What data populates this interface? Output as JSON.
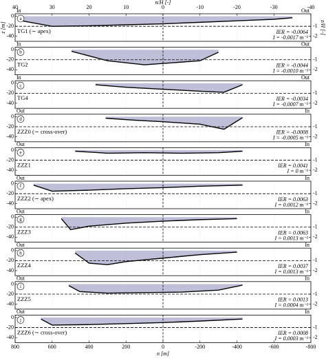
{
  "chart_data": [
    {
      "type": "line",
      "label": "a",
      "name": "TG1 (∼ apex)",
      "left": "In",
      "right": "Out",
      "ier": "IER = -0.0064",
      "i_text": "I = -0.0017 m⁻¹",
      "x2label": "n/H [-]",
      "x2lim": [
        40,
        -40
      ],
      "x2ticks": [
        40,
        30,
        20,
        10,
        0,
        -10,
        -20,
        -30,
        -40
      ],
      "ylabel": "z [m]",
      "y2label": "z/H [-]",
      "x": [
        780,
        600,
        400,
        200,
        0,
        -200,
        -400,
        -600,
        -700
      ],
      "values": [
        -8,
        -20,
        -19,
        -17,
        -15,
        -12,
        -9,
        -6,
        -3
      ],
      "color": "#000000",
      "fill": "#b4b4d2",
      "xlim": [
        800,
        -800
      ],
      "ylim": [
        -50,
        5
      ],
      "yticks": [
        0,
        -20,
        -40
      ],
      "y2lim": [
        -2.5,
        0.25
      ],
      "y2ticks": [
        -1,
        -2
      ]
    },
    {
      "type": "line",
      "label": "b",
      "name": "TG2",
      "left": "In",
      "right": "Out",
      "ier": "IER = -0.0044",
      "i_text": "I = -0.0010 m⁻¹",
      "x": [
        495,
        300,
        100,
        -200,
        -300
      ],
      "values": [
        -3,
        -22,
        -30,
        -22,
        -5
      ],
      "color": "#000000",
      "fill": "#b4b4d2",
      "xlim": [
        800,
        -800
      ],
      "ylim": [
        -50,
        5
      ],
      "yticks": [
        0,
        -20,
        -40
      ],
      "y2lim": [
        -2.5,
        0.25
      ],
      "y2ticks": [
        -1,
        -2
      ]
    },
    {
      "type": "line",
      "label": "c",
      "name": "TG4",
      "left": "In",
      "right": "Out",
      "ier": "IER = -0.0034",
      "i_text": "I = -0.0007 m⁻¹",
      "x": [
        365,
        200,
        0,
        -200,
        -330,
        -430
      ],
      "values": [
        -3,
        -8,
        -12,
        -16,
        -18,
        -3
      ],
      "color": "#000000",
      "fill": "#b4b4d2",
      "xlim": [
        800,
        -800
      ],
      "ylim": [
        -50,
        5
      ],
      "yticks": [
        0,
        -20,
        -40
      ],
      "y2lim": [
        -2.5,
        0.25
      ],
      "y2ticks": [
        -1,
        -2
      ]
    },
    {
      "type": "line",
      "label": "d",
      "name": "ZZZ0 (∼ cross-over)",
      "left": "Out",
      "right": "In",
      "ier": "IER = -0.0008",
      "i_text": "I = -0.0005 m⁻¹",
      "x": [
        310,
        150,
        0,
        -200,
        -330,
        -430
      ],
      "values": [
        -3,
        -7,
        -10,
        -15,
        -25,
        -2
      ],
      "color": "#000000",
      "fill": "#b4b4d2",
      "xlim": [
        800,
        -800
      ],
      "ylim": [
        -50,
        5
      ],
      "yticks": [
        0,
        -20,
        -40
      ],
      "y2lim": [
        -2.5,
        0.25
      ],
      "y2ticks": [
        -1,
        -2
      ]
    },
    {
      "type": "line",
      "label": "e",
      "name": "ZZZ1",
      "left": "Out",
      "right": "In",
      "ier": "IER = 0.0041",
      "i_text": "I = 0 m⁻¹",
      "x": [
        475,
        300,
        100,
        -100,
        -300,
        -430
      ],
      "values": [
        -2,
        -6,
        -5,
        -6,
        -5,
        -2
      ],
      "color": "#000000",
      "fill": "#b4b4d2",
      "xlim": [
        800,
        -800
      ],
      "ylim": [
        -50,
        5
      ],
      "yticks": [
        0,
        -20,
        -40
      ],
      "y2lim": [
        -2.5,
        0.25
      ],
      "y2ticks": [
        -1,
        -2
      ]
    },
    {
      "type": "line",
      "label": "f",
      "name": "ZZZ2 (∼ apex)",
      "left": "Out",
      "right": "In",
      "ier": "IER = 0.0063",
      "i_text": "I = 0.0012 m⁻¹",
      "x": [
        700,
        600,
        400,
        200,
        0,
        -200,
        -430
      ],
      "values": [
        -3,
        -15,
        -13,
        -10,
        -8,
        -5,
        -3
      ],
      "color": "#000000",
      "fill": "#b4b4d2",
      "xlim": [
        800,
        -800
      ],
      "ylim": [
        -50,
        5
      ],
      "yticks": [
        0,
        -20,
        -40
      ],
      "y2lim": [
        -2.5,
        0.25
      ],
      "y2ticks": [
        -1,
        -2
      ]
    },
    {
      "type": "line",
      "label": "g",
      "name": "ZZZ3",
      "left": "Out",
      "right": "In",
      "ier": "IER = 0.0063",
      "i_text": "I = 0.0013 m⁻¹",
      "x": [
        550,
        500,
        400,
        200,
        0,
        -200,
        -400
      ],
      "values": [
        -3,
        -25,
        -18,
        -12,
        -8,
        -5,
        -3
      ],
      "color": "#000000",
      "fill": "#b4b4d2",
      "xlim": [
        800,
        -800
      ],
      "ylim": [
        -50,
        5
      ],
      "yticks": [
        0,
        -20,
        -40
      ],
      "y2lim": [
        -2.5,
        0.25
      ],
      "y2ticks": [
        -1,
        -2
      ]
    },
    {
      "type": "line",
      "label": "h",
      "name": "ZZZ4",
      "left": "Out",
      "right": "In",
      "ier": "IER = 0.0037",
      "i_text": "I = 0.0013 m⁻¹",
      "x": [
        475,
        400,
        300,
        200,
        0,
        -200,
        -400
      ],
      "values": [
        -5,
        -25,
        -28,
        -22,
        -15,
        -8,
        -3
      ],
      "color": "#000000",
      "fill": "#b4b4d2",
      "xlim": [
        800,
        -800
      ],
      "ylim": [
        -50,
        5
      ],
      "yticks": [
        0,
        -20,
        -40
      ],
      "y2lim": [
        -2.5,
        0.25
      ],
      "y2ticks": [
        -1,
        -2
      ]
    },
    {
      "type": "line",
      "label": "i",
      "name": "ZZZ5",
      "left": "Out",
      "right": "In",
      "ier": "IER = 0.0013",
      "i_text": "I = 0.0004 m⁻¹",
      "x": [
        510,
        450,
        300,
        100,
        -100,
        -300,
        -430
      ],
      "values": [
        -3,
        -15,
        -18,
        -17,
        -16,
        -12,
        -2
      ],
      "color": "#000000",
      "fill": "#b4b4d2",
      "xlim": [
        800,
        -800
      ],
      "ylim": [
        -50,
        5
      ],
      "yticks": [
        0,
        -20,
        -40
      ],
      "y2lim": [
        -2.5,
        0.25
      ],
      "y2ticks": [
        -1,
        -2
      ]
    },
    {
      "type": "line",
      "label": "j",
      "name": "ZZZ6 (∼ cross-over)",
      "left": "Out",
      "right": "In",
      "ier": "IER = 0.0008",
      "i_text": "I = 0.0003 m⁻¹",
      "xlabel": "n [m]",
      "xticks": [
        800,
        600,
        400,
        200,
        0,
        -200,
        -400,
        -600,
        -800
      ],
      "x": [
        660,
        600,
        400,
        200,
        0,
        -200,
        -430
      ],
      "values": [
        -3,
        -15,
        -14,
        -12,
        -10,
        -7,
        -3
      ],
      "color": "#000000",
      "fill": "#b4b4d2",
      "xlim": [
        800,
        -800
      ],
      "ylim": [
        -50,
        5
      ],
      "yticks": [
        0,
        -20,
        -40
      ],
      "y2lim": [
        -2.5,
        0.25
      ],
      "y2ticks": [
        -1,
        -2
      ]
    }
  ]
}
